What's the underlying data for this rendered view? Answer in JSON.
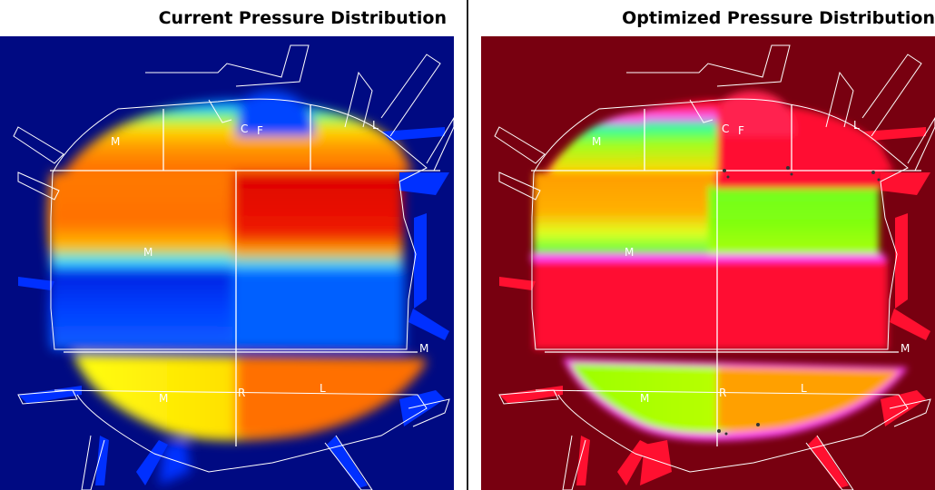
{
  "panels": {
    "left": {
      "title": "Current Pressure Distribution",
      "background": "#000a82",
      "labels": [
        "C",
        "F",
        "M",
        "M",
        "L",
        "M",
        "R",
        "L",
        "M"
      ]
    },
    "right": {
      "title": "Optimized Pressure Distribution",
      "background": "#780010",
      "labels": [
        "C",
        "F",
        "M",
        "M",
        "L",
        "M",
        "R",
        "L",
        "M"
      ]
    }
  }
}
